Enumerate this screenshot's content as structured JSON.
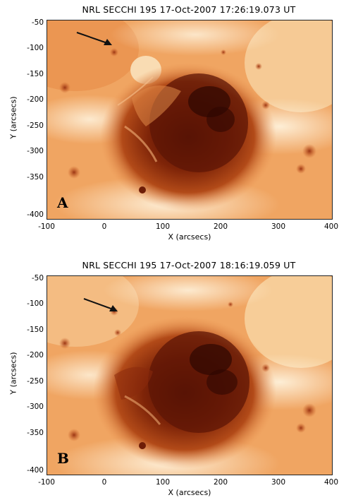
{
  "panels": [
    {
      "title": "NRL SECCHI 195 17-Oct-2007 17:26:19.073 UT",
      "letter": "A",
      "ylabel": "Y (arcsecs)",
      "xlabel": "X (arcsecs)",
      "yticks": [
        "-50",
        "-100",
        "-150",
        "-200",
        "-250",
        "-300",
        "-350",
        "-400"
      ],
      "xticks": [
        "-100",
        "0",
        "100",
        "200",
        "300",
        "400"
      ],
      "arrow": "arrow"
    },
    {
      "title": "NRL SECCHI 195 17-Oct-2007 18:16:19.059 UT",
      "letter": "B",
      "ylabel": "Y (arcsecs)",
      "xlabel": "X (arcsecs)",
      "yticks": [
        "-50",
        "-100",
        "-150",
        "-200",
        "-250",
        "-300",
        "-350",
        "-400"
      ],
      "xticks": [
        "-100",
        "0",
        "100",
        "200",
        "300",
        "400"
      ],
      "arrow": "arrow"
    }
  ],
  "colors": {
    "background_light": "#fbe3bf",
    "mid_orange": "#ef9a55",
    "dark_core": "#8e2c0e",
    "darkest": "#4a0e04"
  }
}
